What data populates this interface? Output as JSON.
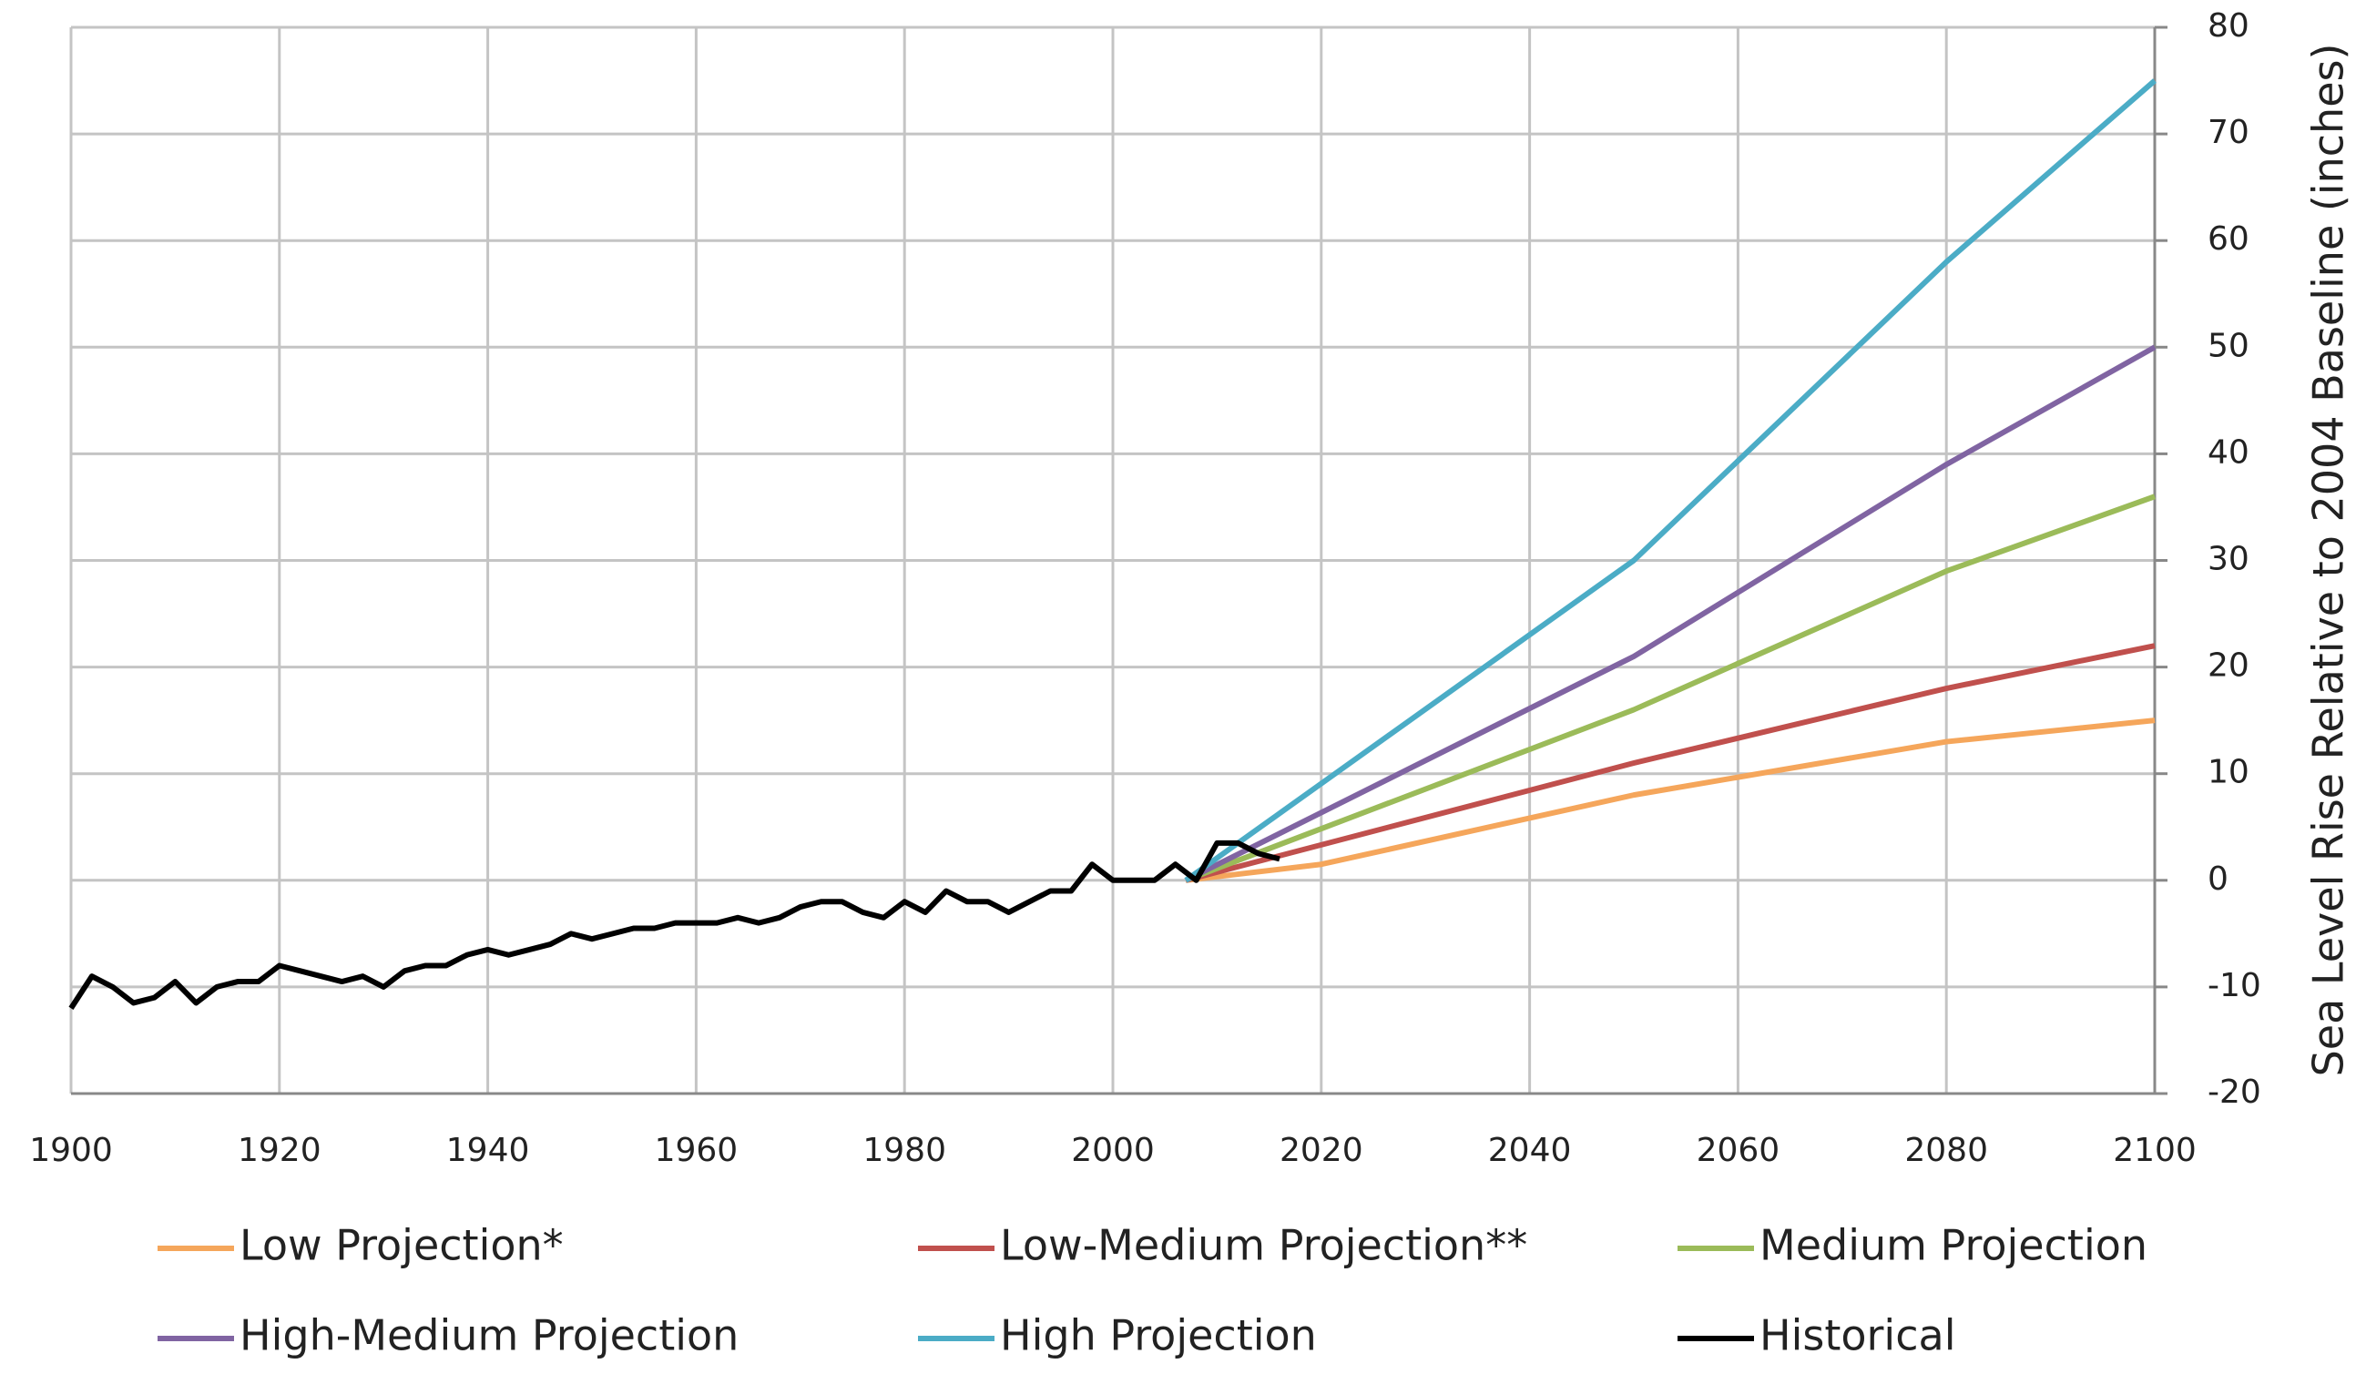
{
  "chart_data": {
    "type": "line",
    "ylabel": "Sea Level Rise Relative to 2004 Baseline (inches)",
    "xlim": [
      1900,
      2100
    ],
    "xticks": [
      1900,
      1920,
      1940,
      1960,
      1980,
      2000,
      2020,
      2040,
      2060,
      2080,
      2100
    ],
    "ylim": [
      -20,
      80
    ],
    "yticks": [
      -20,
      -10,
      0,
      10,
      20,
      30,
      40,
      50,
      60,
      70,
      80
    ],
    "grid": true,
    "yaxis_side": "right",
    "legend": "bottom",
    "series": [
      {
        "name": "Low Projection*",
        "color": "#f5a65b",
        "x": [
          2007,
          2020,
          2050,
          2080,
          2100
        ],
        "values": [
          0,
          1.5,
          8,
          13,
          15
        ]
      },
      {
        "name": "Low-Medium Projection**",
        "color": "#c0504d",
        "x": [
          2007,
          2050,
          2080,
          2100
        ],
        "values": [
          0,
          11,
          18,
          22
        ]
      },
      {
        "name": "Medium Projection",
        "color": "#9bbb59",
        "x": [
          2007,
          2050,
          2080,
          2100
        ],
        "values": [
          0,
          16,
          29,
          36
        ]
      },
      {
        "name": "High-Medium Projection",
        "color": "#8064a2",
        "x": [
          2007,
          2050,
          2080,
          2100
        ],
        "values": [
          0,
          21,
          39,
          50
        ]
      },
      {
        "name": "High Projection",
        "color": "#4bacc6",
        "x": [
          2007,
          2050,
          2080,
          2100
        ],
        "values": [
          0,
          30,
          58,
          75
        ]
      },
      {
        "name": "Historical",
        "color": "#000000",
        "x": [
          1900,
          1902,
          1904,
          1906,
          1908,
          1910,
          1912,
          1914,
          1916,
          1918,
          1920,
          1922,
          1924,
          1926,
          1928,
          1930,
          1932,
          1934,
          1936,
          1938,
          1940,
          1942,
          1944,
          1946,
          1948,
          1950,
          1952,
          1954,
          1956,
          1958,
          1960,
          1962,
          1964,
          1966,
          1968,
          1970,
          1972,
          1974,
          1976,
          1978,
          1980,
          1982,
          1984,
          1986,
          1988,
          1990,
          1992,
          1994,
          1996,
          1998,
          2000,
          2002,
          2004,
          2006,
          2008,
          2010,
          2012,
          2014,
          2016
        ],
        "values": [
          -12,
          -9,
          -10,
          -11.5,
          -11,
          -9.5,
          -11.5,
          -10,
          -9.5,
          -9.5,
          -8,
          -8.5,
          -9,
          -9.5,
          -9,
          -10,
          -8.5,
          -8,
          -8,
          -7,
          -6.5,
          -7,
          -6.5,
          -6,
          -5,
          -5.5,
          -5,
          -4.5,
          -4.5,
          -4,
          -4,
          -4,
          -3.5,
          -4,
          -3.5,
          -2.5,
          -2,
          -2,
          -3,
          -3.5,
          -2,
          -3,
          -1,
          -2,
          -2,
          -3,
          -2,
          -1,
          -1,
          1.5,
          0,
          0,
          0,
          1.5,
          0,
          3.5,
          3.5,
          2.5,
          2
        ]
      }
    ]
  }
}
